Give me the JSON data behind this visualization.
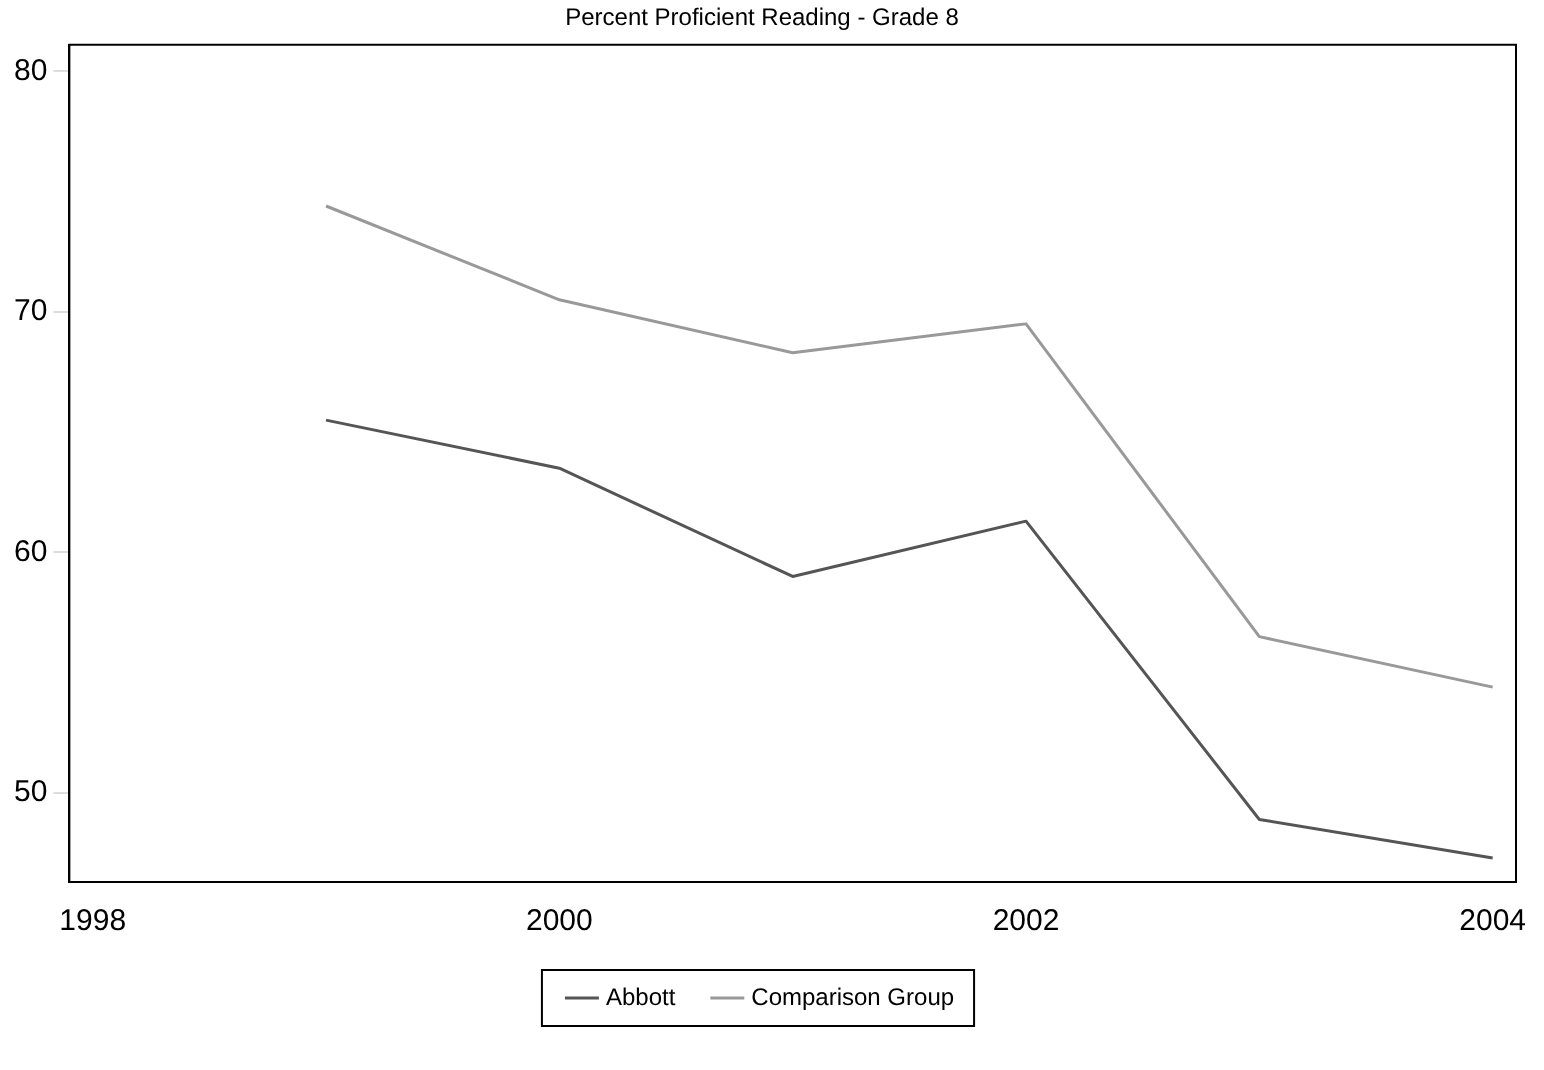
{
  "chart_data": {
    "type": "line",
    "title": "Percent Proficient Reading - Grade 8",
    "x": [
      1999,
      2000,
      2001,
      2002,
      2003,
      2004
    ],
    "series": [
      {
        "name": "Abbott",
        "color": "#555555",
        "values": [
          65.5,
          63.5,
          59.0,
          61.3,
          48.9,
          47.3
        ]
      },
      {
        "name": "Comparison Group",
        "color": "#999999",
        "values": [
          74.4,
          70.5,
          68.3,
          69.5,
          56.5,
          54.4
        ]
      }
    ],
    "xlim": [
      1997.9,
      2004.1
    ],
    "xticks": [
      1998,
      2000,
      2002,
      2004
    ],
    "ylim": [
      46.3,
      81.1
    ],
    "yticks": [
      50,
      60,
      70,
      80
    ],
    "grid": false,
    "legend": "bottom",
    "marker": "none",
    "line_style": "solid"
  }
}
